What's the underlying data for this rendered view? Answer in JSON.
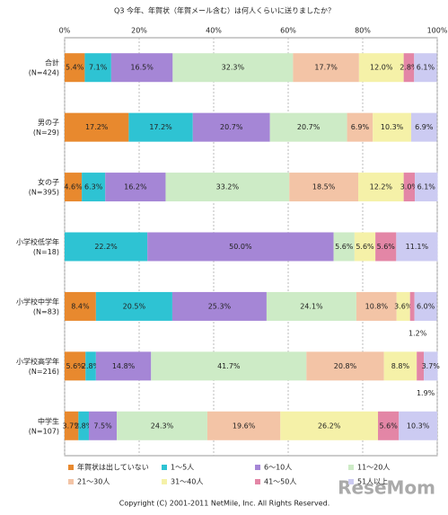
{
  "chart_data": {
    "type": "stacked_bar_horizontal",
    "title": "Q3 今年、年賀状（年賀メール含む）は何人くらいに送りましたか？",
    "categories": [
      [
        "合計",
        "(N=424)"
      ],
      [
        "男の子",
        "(N=29)"
      ],
      [
        "女の子",
        "(N=395)"
      ],
      [
        "小学校低学年",
        "(N=18)"
      ],
      [
        "小学校中学年",
        "(N=83)"
      ],
      [
        "小学校高学年",
        "(N=216)"
      ],
      [
        "中学生",
        "(N=107)"
      ]
    ],
    "xlim": [
      0,
      100
    ],
    "xticks": [
      {
        "value": 0,
        "label": "0%"
      },
      {
        "value": 20,
        "label": "20%"
      },
      {
        "value": 40,
        "label": "40%"
      },
      {
        "value": 60,
        "label": "60%"
      },
      {
        "value": 80,
        "label": "80%"
      },
      {
        "value": 100,
        "label": "100%"
      }
    ],
    "grid": true,
    "series": [
      {
        "name": "年賀状は出していない",
        "color": "#E8892E",
        "values": [
          5.4,
          17.2,
          4.6,
          null,
          8.4,
          5.6,
          3.7
        ],
        "value_labels": [
          "5.4%",
          "17.2%",
          "4.6%",
          null,
          "8.4%",
          "5.6%",
          "3.7%"
        ]
      },
      {
        "name": "1～5人",
        "color": "#2EC3D3",
        "values": [
          7.1,
          17.2,
          6.3,
          22.2,
          20.5,
          2.8,
          2.8
        ],
        "value_labels": [
          "7.1%",
          "17.2%",
          "6.3%",
          "22.2%",
          "20.5%",
          "2.8%",
          "2.8%"
        ]
      },
      {
        "name": "6～10人",
        "color": "#A586D6",
        "values": [
          16.5,
          20.7,
          16.2,
          50.0,
          25.3,
          14.8,
          7.5
        ],
        "value_labels": [
          "16.5%",
          "20.7%",
          "16.2%",
          "50.0%",
          "25.3%",
          "14.8%",
          "7.5%"
        ]
      },
      {
        "name": "11～20人",
        "color": "#CDEBC6",
        "values": [
          32.3,
          20.7,
          33.2,
          5.6,
          24.1,
          41.7,
          24.3
        ],
        "value_labels": [
          "32.3%",
          "20.7%",
          "33.2%",
          "5.6%",
          "24.1%",
          "41.7%",
          "24.3%"
        ]
      },
      {
        "name": "21～30人",
        "color": "#F3C4A6",
        "values": [
          17.7,
          6.9,
          18.5,
          null,
          10.8,
          20.8,
          19.6
        ],
        "value_labels": [
          "17.7%",
          "6.9%",
          "18.5%",
          null,
          "10.8%",
          "20.8%",
          "19.6%"
        ]
      },
      {
        "name": "31～40人",
        "color": "#F5F1A8",
        "values": [
          12.0,
          10.3,
          12.2,
          5.6,
          3.6,
          8.8,
          26.2
        ],
        "value_labels": [
          "12.0%",
          "10.3%",
          "12.2%",
          "5.6%",
          "3.6%",
          "8.8%",
          "26.2%"
        ]
      },
      {
        "name": "41～50人",
        "color": "#E386A6",
        "values": [
          2.8,
          null,
          3.0,
          5.6,
          1.2,
          1.9,
          5.6
        ],
        "value_labels": [
          "2.8%",
          null,
          "3.0%",
          "5.6%",
          "1.2%",
          "1.9%",
          "5.6%"
        ]
      },
      {
        "name": "51人以上",
        "color": "#CCCBF2",
        "values": [
          6.1,
          6.9,
          6.1,
          11.1,
          6.0,
          3.7,
          10.3
        ],
        "value_labels": [
          "6.1%",
          "6.9%",
          "6.1%",
          "11.1%",
          "6.0%",
          "3.7%",
          "10.3%"
        ]
      }
    ],
    "footer": "Copyright (C) 2001-2011 NetMile, Inc. All Rights Reserved.",
    "watermark": "ReseMom"
  }
}
